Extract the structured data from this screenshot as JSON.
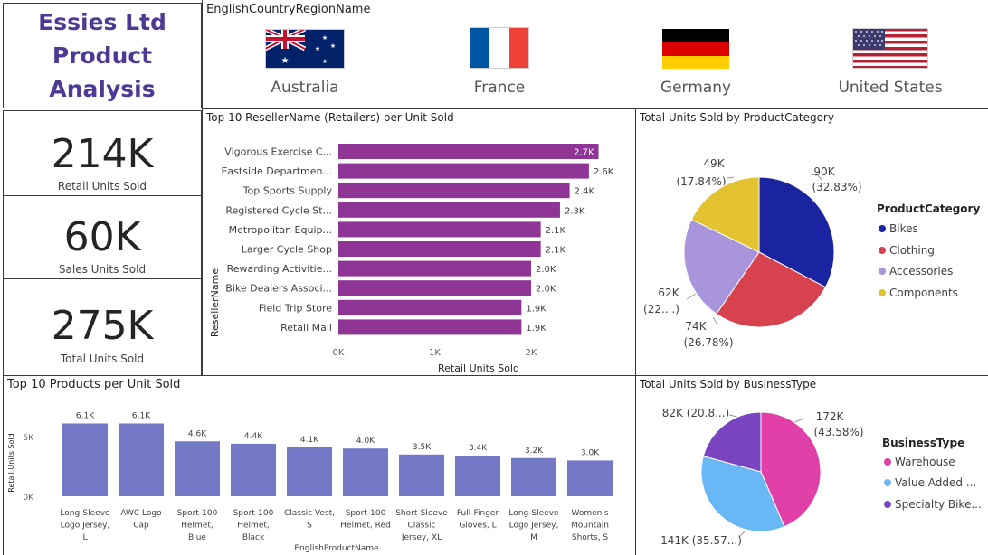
{
  "header": {
    "title_lines": [
      "Essies Ltd",
      "Product",
      "Analysis"
    ]
  },
  "slicer": {
    "title": "EnglishCountryRegionName",
    "countries": [
      {
        "name": "Australia",
        "flag": "australia-flag"
      },
      {
        "name": "France",
        "flag": "france-flag"
      },
      {
        "name": "Germany",
        "flag": "germany-flag"
      },
      {
        "name": "United States",
        "flag": "usa-flag"
      }
    ]
  },
  "kpis": [
    {
      "value": "214K",
      "label": "Retail Units Sold"
    },
    {
      "value": "60K",
      "label": "Sales Units Sold"
    },
    {
      "value": "275K",
      "label": "Total Units Sold"
    }
  ],
  "colors": {
    "purple_bar": "#8e3596",
    "blue_bar": "#7479c7",
    "title_purple": "#4e3a94",
    "bikes": "#1a24a0",
    "clothing": "#d6424e",
    "accessories": "#a995dc",
    "components": "#e2c22f",
    "warehouse": "#e040a8",
    "value_added": "#69b8f5",
    "specialty": "#7b45c2"
  },
  "chart_data": [
    {
      "type": "bar",
      "orientation": "horizontal",
      "title": "Top 10 ResellerName (Retailers) per Unit Sold",
      "xlabel": "Retail Units Sold",
      "ylabel": "ResellerName",
      "categories": [
        "Vigorous Exercise C...",
        "Eastside Departmen...",
        "Top Sports Supply",
        "Registered Cycle St...",
        "Metropolitan Equip...",
        "Larger Cycle Shop",
        "Rewarding Activitie...",
        "Bike Dealers Associ...",
        "Field Trip Store",
        "Retail Mall"
      ],
      "values": [
        2700,
        2600,
        2400,
        2300,
        2100,
        2100,
        2000,
        2000,
        1900,
        1900
      ],
      "data_labels": [
        "2.7K",
        "2.6K",
        "2.4K",
        "2.3K",
        "2.1K",
        "2.1K",
        "2.0K",
        "2.0K",
        "1.9K",
        "1.9K"
      ],
      "xticks": [
        "0K",
        "1K",
        "2K"
      ],
      "xlim": [
        0,
        2800
      ]
    },
    {
      "type": "pie",
      "title": "Total Units Sold by ProductCategory",
      "legend_title": "ProductCategory",
      "legend_position": "right",
      "slices": [
        {
          "name": "Bikes",
          "value": 90,
          "pct": 32.83,
          "label_value": "90K",
          "label_pct": "(32.83%)"
        },
        {
          "name": "Clothing",
          "value": 74,
          "pct": 26.78,
          "label_value": "74K",
          "label_pct": "(26.78%)"
        },
        {
          "name": "Accessories",
          "value": 62,
          "pct": 22.55,
          "label_value": "62K",
          "label_pct": "(22....)"
        },
        {
          "name": "Components",
          "value": 49,
          "pct": 17.84,
          "label_value": "49K",
          "label_pct": "(17.84%)"
        }
      ]
    },
    {
      "type": "bar",
      "orientation": "vertical",
      "title": "Top 10 Products per Unit Sold",
      "xlabel": "EnglishProductName",
      "ylabel": "Retail Units Sold",
      "categories": [
        [
          "Long-Sleeve",
          "Logo Jersey,",
          "L"
        ],
        [
          "AWC Logo",
          "Cap"
        ],
        [
          "Sport-100",
          "Helmet,",
          "Blue"
        ],
        [
          "Sport-100",
          "Helmet,",
          "Black"
        ],
        [
          "Classic Vest,",
          "S"
        ],
        [
          "Sport-100",
          "Helmet, Red"
        ],
        [
          "Short-Sleeve",
          "Classic",
          "Jersey, XL"
        ],
        [
          "Full-Finger",
          "Gloves, L"
        ],
        [
          "Long-Sleeve",
          "Logo Jersey,",
          "M"
        ],
        [
          "Women's",
          "Mountain",
          "Shorts, S"
        ]
      ],
      "values": [
        6100,
        6100,
        4600,
        4400,
        4100,
        4000,
        3500,
        3400,
        3200,
        3000
      ],
      "data_labels": [
        "6.1K",
        "6.1K",
        "4.6K",
        "4.4K",
        "4.1K",
        "4.0K",
        "3.5K",
        "3.4K",
        "3.2K",
        "3.0K"
      ],
      "yticks": [
        "0K",
        "5K"
      ],
      "ylim": [
        0,
        7500
      ]
    },
    {
      "type": "pie",
      "title": "Total Units Sold by BusinessType",
      "legend_title": "BusinessType",
      "legend_position": "right",
      "slices": [
        {
          "name": "Warehouse",
          "legend_label": "Warehouse",
          "value": 172,
          "pct": 43.58,
          "label_value": "172K",
          "label_pct": "(43.58%)"
        },
        {
          "name": "Value Added Reseller",
          "legend_label": "Value Added ...",
          "value": 141,
          "pct": 35.57,
          "label": "141K (35.57...)"
        },
        {
          "name": "Specialty Bike Shop",
          "legend_label": "Specialty Bike...",
          "value": 82,
          "pct": 20.85,
          "label": "82K (20.8...)"
        }
      ]
    }
  ]
}
